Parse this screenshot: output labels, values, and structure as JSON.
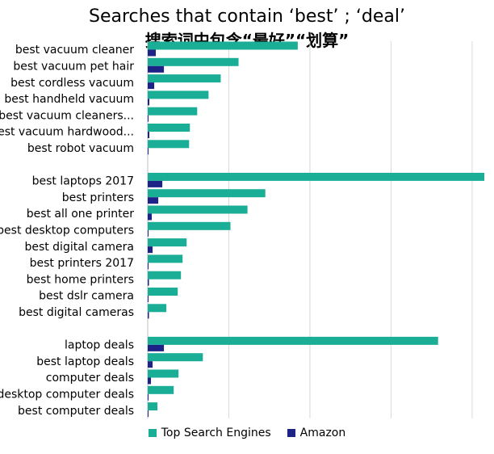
{
  "chart_data": {
    "type": "bar",
    "orientation": "horizontal",
    "title": "Searches that contain ‘best’ ; ‘deal’",
    "subtitle": "搜索词中包含“最好”“划算”",
    "groups": [
      {
        "categories": [
          "best vacuum cleaner",
          "best vacuum pet hair",
          "best cordless vacuum",
          "best handheld vacuum",
          "best vacuum cleaners...",
          "best vacuum hardwood...",
          "best robot vacuum"
        ],
        "series": [
          {
            "name": "Top Search Engines",
            "values": [
              18.5,
              11.2,
              9.0,
              7.5,
              6.1,
              5.2,
              5.1
            ]
          },
          {
            "name": "Amazon",
            "values": [
              1.0,
              2.0,
              0.8,
              0.2,
              0.05,
              0.2,
              0.05
            ]
          }
        ]
      },
      {
        "categories": [
          "best laptops 2017",
          "best printers",
          "best all one printer",
          "best desktop computers",
          "best digital camera",
          "best printers 2017",
          "best home printers",
          "best dslr camera",
          "best digital cameras"
        ],
        "series": [
          {
            "name": "Top Search Engines",
            "values": [
              41.5,
              14.5,
              12.3,
              10.2,
              4.8,
              4.3,
              4.1,
              3.7,
              2.3
            ]
          },
          {
            "name": "Amazon",
            "values": [
              1.8,
              1.3,
              0.5,
              0.05,
              0.6,
              0.1,
              0.15,
              0.05,
              0.15
            ]
          }
        ]
      },
      {
        "categories": [
          "laptop deals",
          "best laptop deals",
          "computer deals",
          "desktop computer deals",
          "best computer deals"
        ],
        "series": [
          {
            "name": "Top Search Engines",
            "values": [
              35.8,
              6.8,
              3.8,
              3.2,
              1.2
            ]
          },
          {
            "name": "Amazon",
            "values": [
              2.0,
              0.6,
              0.4,
              0.1,
              0.05
            ]
          }
        ]
      }
    ],
    "xlim": [
      0,
      41.5
    ],
    "x_gridlines": [
      10,
      20,
      30,
      40
    ],
    "grid": true,
    "legend": "bottom",
    "colors": {
      "Top Search Engines": "#1aae97",
      "Amazon": "#1c2286"
    }
  }
}
